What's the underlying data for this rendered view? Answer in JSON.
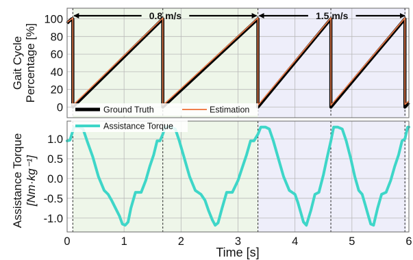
{
  "chart_data": [
    {
      "type": "line",
      "panel": "gait-cycle",
      "ylabel_lines": [
        "Gait Cycle",
        "Percentage [%]"
      ],
      "xlim": [
        0,
        6
      ],
      "ylim": [
        -12,
        112
      ],
      "yticks": [
        0,
        20,
        40,
        60,
        80,
        100
      ],
      "ytick_labels": [
        "0",
        "20",
        "40",
        "60",
        "80",
        "100"
      ],
      "grid": true,
      "legend_position": "bottom",
      "speed_labels": [
        "0.8 m/s",
        "1.5 m/s"
      ],
      "speed_ranges": [
        [
          0.1,
          3.35
        ],
        [
          3.35,
          5.95
        ]
      ],
      "legend": [
        "Ground Truth",
        "Estimation"
      ],
      "series": [
        {
          "name": "Ground Truth",
          "color": "#000000",
          "x": [
            0,
            0.08,
            0.08,
            0.1,
            0.1,
            1.68,
            1.68,
            3.35,
            3.35,
            4.63,
            4.63,
            5.93,
            5.93,
            6.0
          ],
          "y": [
            95,
            100,
            100,
            100,
            0,
            100,
            0,
            100,
            0,
            100,
            0,
            100,
            0,
            5
          ]
        },
        {
          "name": "Estimation",
          "color": "#f07f4c",
          "x": [
            0,
            0.08,
            0.1,
            0.1,
            1.68,
            1.68,
            3.35,
            3.35,
            4.63,
            4.63,
            5.93,
            5.93,
            6.0
          ],
          "y": [
            96,
            100,
            101,
            2,
            101,
            2,
            101,
            2,
            101,
            2,
            101,
            3,
            7
          ]
        }
      ]
    },
    {
      "type": "line",
      "panel": "assistance-torque",
      "ylabel_lines": [
        "Assistance Torque",
        "[Nm·kg⁻¹]"
      ],
      "xlabel": "Time [s]",
      "xlim": [
        0,
        6
      ],
      "xticks": [
        0,
        1,
        2,
        3,
        4,
        5,
        6
      ],
      "xtick_labels": [
        "0",
        "1",
        "2",
        "3",
        "4",
        "5",
        "6"
      ],
      "ylim": [
        -1.35,
        1.45
      ],
      "yticks": [
        -1.0,
        -0.5,
        0.0,
        0.5,
        1.0
      ],
      "ytick_labels": [
        "-1.0",
        "-0.5",
        "0.0",
        "0.5",
        "1.0"
      ],
      "grid": true,
      "legend_position": "top-left",
      "legend": [
        "Assistance Torque"
      ],
      "series": [
        {
          "name": "Assistance Torque",
          "color": "#3ed6c8",
          "x": [
            0.0,
            0.05,
            0.12,
            0.2,
            0.28,
            0.35,
            0.45,
            0.55,
            0.65,
            0.72,
            0.78,
            0.85,
            0.92,
            0.97,
            1.02,
            1.07,
            1.12,
            1.2,
            1.3,
            1.38,
            1.45,
            1.52,
            1.58,
            1.63,
            1.68,
            1.72,
            1.8,
            1.9,
            1.97,
            2.05,
            2.15,
            2.25,
            2.35,
            2.42,
            2.48,
            2.55,
            2.6,
            2.65,
            2.72,
            2.8,
            2.9,
            3.0,
            3.08,
            3.15,
            3.22,
            3.28,
            3.35,
            3.4,
            3.48,
            3.55,
            3.62,
            3.7,
            3.8,
            3.9,
            4.0,
            4.05,
            4.1,
            4.15,
            4.2,
            4.28,
            4.35,
            4.42,
            4.5,
            4.56,
            4.63,
            4.68,
            4.75,
            4.83,
            4.9,
            4.98,
            5.05,
            5.12,
            5.18,
            5.23,
            5.28,
            5.33,
            5.38,
            5.45,
            5.52,
            5.6,
            5.68,
            5.75,
            5.82,
            5.88,
            5.93,
            5.98,
            6.0
          ],
          "y": [
            0.95,
            0.97,
            1.3,
            1.3,
            1.25,
            0.95,
            0.55,
            0.05,
            -0.3,
            -0.4,
            -0.55,
            -0.75,
            -0.95,
            -1.15,
            -1.18,
            -1.1,
            -0.75,
            -0.35,
            -0.35,
            -0.05,
            0.3,
            0.6,
            0.95,
            0.95,
            1.12,
            1.3,
            1.3,
            1.25,
            0.95,
            0.55,
            0.05,
            -0.3,
            -0.4,
            -0.55,
            -0.8,
            -1.05,
            -1.18,
            -1.12,
            -0.75,
            -0.35,
            -0.35,
            -0.05,
            0.3,
            0.6,
            0.95,
            0.95,
            1.12,
            1.3,
            1.3,
            1.25,
            0.95,
            0.55,
            0.05,
            -0.3,
            -0.4,
            -0.6,
            -0.85,
            -1.1,
            -1.18,
            -0.8,
            -0.4,
            -0.35,
            0.1,
            0.5,
            0.95,
            1.3,
            1.3,
            1.25,
            0.95,
            0.5,
            0.05,
            -0.3,
            -0.4,
            -0.65,
            -0.9,
            -1.15,
            -1.18,
            -0.75,
            -0.4,
            -0.35,
            -0.05,
            0.3,
            0.6,
            0.95,
            1.0,
            1.3,
            1.3
          ]
        }
      ]
    }
  ],
  "colors": {
    "region_slow": "#eef6e9",
    "region_fast": "#eeeefa",
    "grid": "#b8b8b8",
    "frame": "#666666"
  }
}
